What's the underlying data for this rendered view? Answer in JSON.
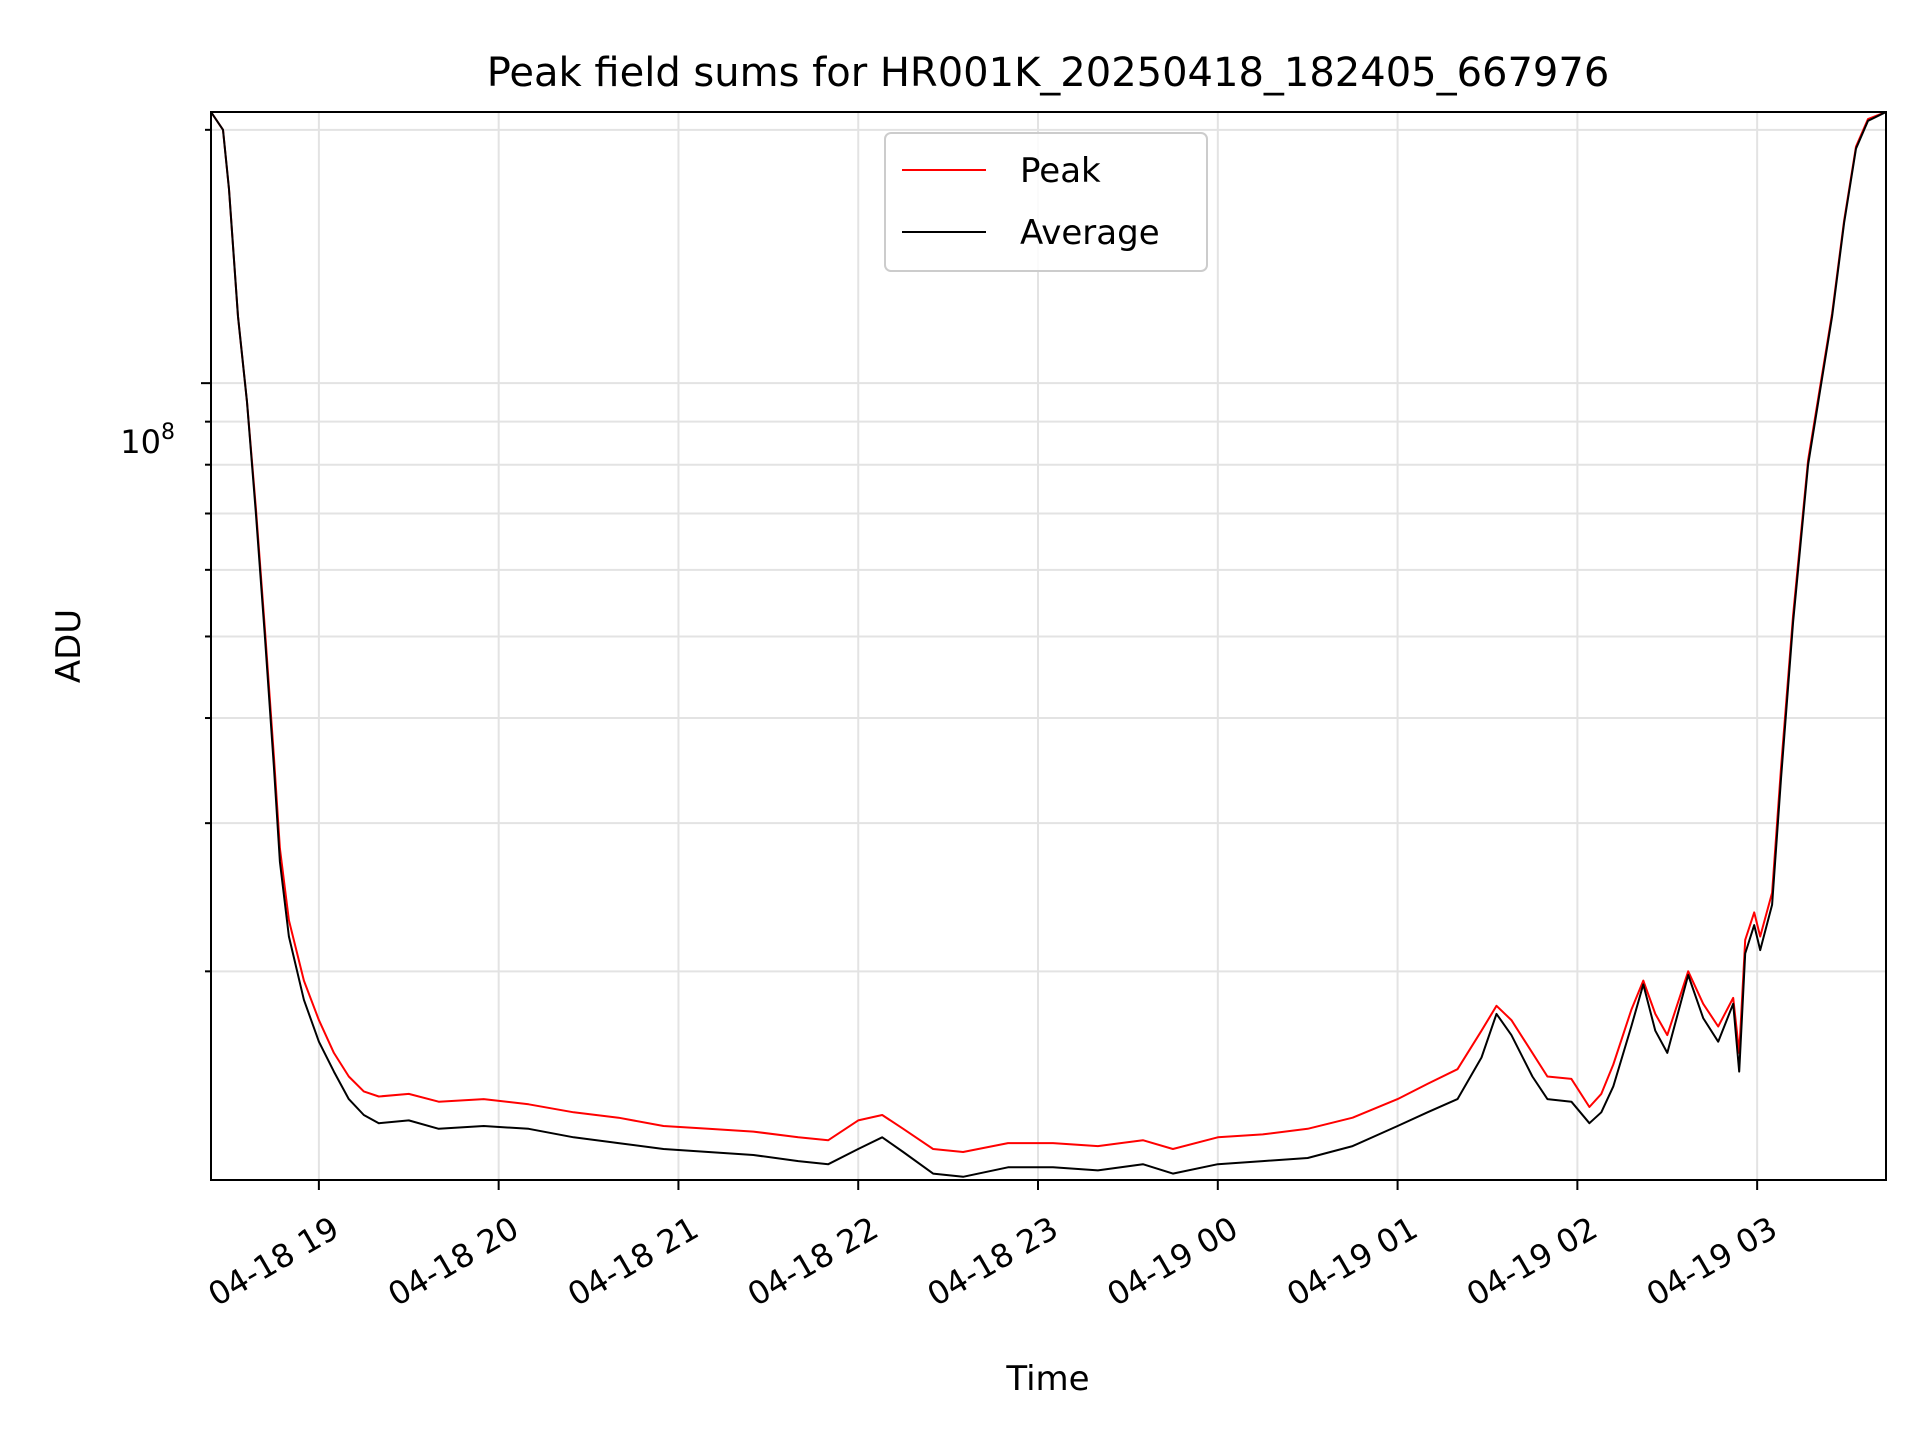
{
  "chart_data": {
    "type": "line",
    "title": "Peak field sums for HR001K_20250418_182405_667976",
    "xlabel": "Time",
    "ylabel": "ADU",
    "y_scale": "log",
    "y_tick_label": {
      "base": "10",
      "exponent": "8"
    },
    "ylim": [
      11300000,
      210000000
    ],
    "xlim": [
      "2025-04-18 18:24",
      "2025-04-19 03:43"
    ],
    "x_ticks": [
      {
        "t": "2025-04-18 19:00",
        "label": "04-18 19"
      },
      {
        "t": "2025-04-18 20:00",
        "label": "04-18 20"
      },
      {
        "t": "2025-04-18 21:00",
        "label": "04-18 21"
      },
      {
        "t": "2025-04-18 22:00",
        "label": "04-18 22"
      },
      {
        "t": "2025-04-18 23:00",
        "label": "04-18 23"
      },
      {
        "t": "2025-04-19 00:00",
        "label": "04-19 00"
      },
      {
        "t": "2025-04-19 01:00",
        "label": "04-19 01"
      },
      {
        "t": "2025-04-19 02:00",
        "label": "04-19 02"
      },
      {
        "t": "2025-04-19 03:00",
        "label": "04-19 03"
      }
    ],
    "grid": true,
    "legend_position": "top-center",
    "series": [
      {
        "name": "Average",
        "color": "#000000",
        "points": [
          [
            "2025-04-18 18:24",
            210000000
          ],
          [
            "2025-04-18 18:28",
            200000000
          ],
          [
            "2025-04-18 18:30",
            170000000
          ],
          [
            "2025-04-18 18:33",
            120000000
          ],
          [
            "2025-04-18 18:36",
            95000000
          ],
          [
            "2025-04-18 18:39",
            70000000
          ],
          [
            "2025-04-18 18:42",
            50000000
          ],
          [
            "2025-04-18 18:45",
            35000000
          ],
          [
            "2025-04-18 18:47",
            27000000
          ],
          [
            "2025-04-18 18:50",
            22000000
          ],
          [
            "2025-04-18 18:55",
            18500000
          ],
          [
            "2025-04-18 19:00",
            16500000
          ],
          [
            "2025-04-18 19:05",
            15200000
          ],
          [
            "2025-04-18 19:10",
            14100000
          ],
          [
            "2025-04-18 19:15",
            13500000
          ],
          [
            "2025-04-18 19:20",
            13200000
          ],
          [
            "2025-04-18 19:30",
            13300000
          ],
          [
            "2025-04-18 19:40",
            13000000
          ],
          [
            "2025-04-18 19:55",
            13100000
          ],
          [
            "2025-04-18 20:10",
            13000000
          ],
          [
            "2025-04-18 20:25",
            12700000
          ],
          [
            "2025-04-18 20:40",
            12500000
          ],
          [
            "2025-04-18 20:55",
            12300000
          ],
          [
            "2025-04-18 21:10",
            12200000
          ],
          [
            "2025-04-18 21:25",
            12100000
          ],
          [
            "2025-04-18 21:40",
            11900000
          ],
          [
            "2025-04-18 21:50",
            11800000
          ],
          [
            "2025-04-18 22:00",
            12300000
          ],
          [
            "2025-04-18 22:08",
            12700000
          ],
          [
            "2025-04-18 22:15",
            12200000
          ],
          [
            "2025-04-18 22:25",
            11500000
          ],
          [
            "2025-04-18 22:35",
            11400000
          ],
          [
            "2025-04-18 22:50",
            11700000
          ],
          [
            "2025-04-18 23:05",
            11700000
          ],
          [
            "2025-04-18 23:20",
            11600000
          ],
          [
            "2025-04-18 23:35",
            11800000
          ],
          [
            "2025-04-18 23:45",
            11500000
          ],
          [
            "2025-04-19 00:00",
            11800000
          ],
          [
            "2025-04-19 00:15",
            11900000
          ],
          [
            "2025-04-19 00:30",
            12000000
          ],
          [
            "2025-04-19 00:45",
            12400000
          ],
          [
            "2025-04-19 01:00",
            13100000
          ],
          [
            "2025-04-19 01:10",
            13600000
          ],
          [
            "2025-04-19 01:20",
            14100000
          ],
          [
            "2025-04-19 01:28",
            15800000
          ],
          [
            "2025-04-19 01:33",
            17800000
          ],
          [
            "2025-04-19 01:38",
            16800000
          ],
          [
            "2025-04-19 01:45",
            15000000
          ],
          [
            "2025-04-19 01:50",
            14100000
          ],
          [
            "2025-04-19 01:58",
            14000000
          ],
          [
            "2025-04-19 02:04",
            13200000
          ],
          [
            "2025-04-19 02:08",
            13600000
          ],
          [
            "2025-04-19 02:12",
            14600000
          ],
          [
            "2025-04-19 02:18",
            17200000
          ],
          [
            "2025-04-19 02:22",
            19300000
          ],
          [
            "2025-04-19 02:26",
            17000000
          ],
          [
            "2025-04-19 02:30",
            16000000
          ],
          [
            "2025-04-19 02:37",
            19800000
          ],
          [
            "2025-04-19 02:42",
            17600000
          ],
          [
            "2025-04-19 02:47",
            16500000
          ],
          [
            "2025-04-19 02:52",
            18300000
          ],
          [
            "2025-04-19 02:54",
            15200000
          ],
          [
            "2025-04-19 02:56",
            21000000
          ],
          [
            "2025-04-19 02:59",
            22700000
          ],
          [
            "2025-04-19 03:01",
            21200000
          ],
          [
            "2025-04-19 03:05",
            24000000
          ],
          [
            "2025-04-19 03:08",
            34000000
          ],
          [
            "2025-04-19 03:12",
            52000000
          ],
          [
            "2025-04-19 03:17",
            80000000
          ],
          [
            "2025-04-19 03:21",
            98000000
          ],
          [
            "2025-04-19 03:25",
            120000000
          ],
          [
            "2025-04-19 03:29",
            155000000
          ],
          [
            "2025-04-19 03:33",
            190000000
          ],
          [
            "2025-04-19 03:37",
            205000000
          ],
          [
            "2025-04-19 03:43",
            210000000
          ]
        ]
      },
      {
        "name": "Peak",
        "color": "#ff0000",
        "points": [
          [
            "2025-04-18 18:24",
            210000000
          ],
          [
            "2025-04-18 18:28",
            200000000
          ],
          [
            "2025-04-18 18:30",
            170000000
          ],
          [
            "2025-04-18 18:33",
            120000000
          ],
          [
            "2025-04-18 18:36",
            95000000
          ],
          [
            "2025-04-18 18:39",
            71000000
          ],
          [
            "2025-04-18 18:42",
            51000000
          ],
          [
            "2025-04-18 18:45",
            36000000
          ],
          [
            "2025-04-18 18:47",
            28000000
          ],
          [
            "2025-04-18 18:50",
            23000000
          ],
          [
            "2025-04-18 18:55",
            19500000
          ],
          [
            "2025-04-18 19:00",
            17500000
          ],
          [
            "2025-04-18 19:05",
            16000000
          ],
          [
            "2025-04-18 19:10",
            15000000
          ],
          [
            "2025-04-18 19:15",
            14400000
          ],
          [
            "2025-04-18 19:20",
            14200000
          ],
          [
            "2025-04-18 19:30",
            14300000
          ],
          [
            "2025-04-18 19:40",
            14000000
          ],
          [
            "2025-04-18 19:55",
            14100000
          ],
          [
            "2025-04-18 20:10",
            13900000
          ],
          [
            "2025-04-18 20:25",
            13600000
          ],
          [
            "2025-04-18 20:40",
            13400000
          ],
          [
            "2025-04-18 20:55",
            13100000
          ],
          [
            "2025-04-18 21:10",
            13000000
          ],
          [
            "2025-04-18 21:25",
            12900000
          ],
          [
            "2025-04-18 21:40",
            12700000
          ],
          [
            "2025-04-18 21:50",
            12600000
          ],
          [
            "2025-04-18 22:00",
            13300000
          ],
          [
            "2025-04-18 22:08",
            13500000
          ],
          [
            "2025-04-18 22:15",
            13000000
          ],
          [
            "2025-04-18 22:25",
            12300000
          ],
          [
            "2025-04-18 22:35",
            12200000
          ],
          [
            "2025-04-18 22:50",
            12500000
          ],
          [
            "2025-04-18 23:05",
            12500000
          ],
          [
            "2025-04-18 23:20",
            12400000
          ],
          [
            "2025-04-18 23:35",
            12600000
          ],
          [
            "2025-04-18 23:45",
            12300000
          ],
          [
            "2025-04-19 00:00",
            12700000
          ],
          [
            "2025-04-19 00:15",
            12800000
          ],
          [
            "2025-04-19 00:30",
            13000000
          ],
          [
            "2025-04-19 00:45",
            13400000
          ],
          [
            "2025-04-19 01:00",
            14100000
          ],
          [
            "2025-04-19 01:10",
            14700000
          ],
          [
            "2025-04-19 01:20",
            15300000
          ],
          [
            "2025-04-19 01:28",
            17000000
          ],
          [
            "2025-04-19 01:33",
            18200000
          ],
          [
            "2025-04-19 01:38",
            17500000
          ],
          [
            "2025-04-19 01:45",
            16000000
          ],
          [
            "2025-04-19 01:50",
            15000000
          ],
          [
            "2025-04-19 01:58",
            14900000
          ],
          [
            "2025-04-19 02:04",
            13800000
          ],
          [
            "2025-04-19 02:08",
            14300000
          ],
          [
            "2025-04-19 02:12",
            15500000
          ],
          [
            "2025-04-19 02:18",
            18000000
          ],
          [
            "2025-04-19 02:22",
            19500000
          ],
          [
            "2025-04-19 02:26",
            17800000
          ],
          [
            "2025-04-19 02:30",
            16800000
          ],
          [
            "2025-04-19 02:37",
            20000000
          ],
          [
            "2025-04-19 02:42",
            18300000
          ],
          [
            "2025-04-19 02:47",
            17200000
          ],
          [
            "2025-04-19 02:52",
            18600000
          ],
          [
            "2025-04-19 02:54",
            16000000
          ],
          [
            "2025-04-19 02:56",
            21800000
          ],
          [
            "2025-04-19 02:59",
            23500000
          ],
          [
            "2025-04-19 03:01",
            22000000
          ],
          [
            "2025-04-19 03:05",
            24800000
          ],
          [
            "2025-04-19 03:08",
            35000000
          ],
          [
            "2025-04-19 03:12",
            53000000
          ],
          [
            "2025-04-19 03:17",
            81000000
          ],
          [
            "2025-04-19 03:21",
            99000000
          ],
          [
            "2025-04-19 03:25",
            121000000
          ],
          [
            "2025-04-19 03:29",
            156000000
          ],
          [
            "2025-04-19 03:33",
            191000000
          ],
          [
            "2025-04-19 03:37",
            206000000
          ],
          [
            "2025-04-19 03:43",
            210000000
          ]
        ]
      }
    ]
  }
}
